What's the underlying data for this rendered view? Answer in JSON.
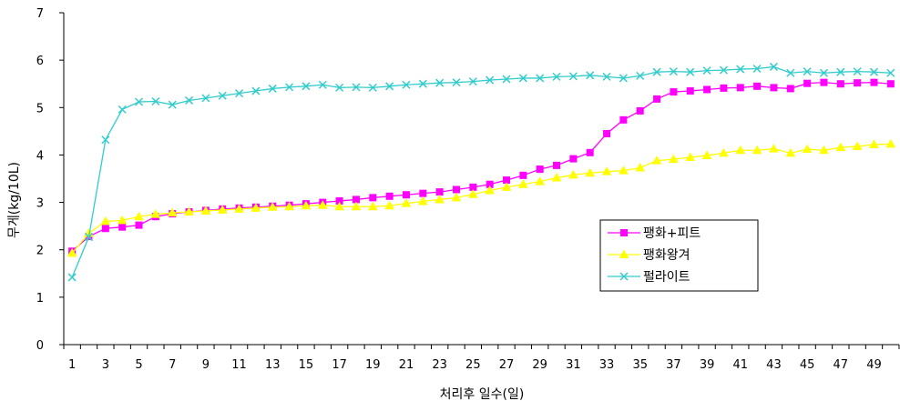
{
  "chart_data": {
    "type": "line",
    "title": "",
    "xlabel": "처리후 일수(일)",
    "ylabel": "무게(kg/10L)",
    "ylim": [
      0,
      7
    ],
    "yticks": [
      0,
      1,
      2,
      3,
      4,
      5,
      6,
      7
    ],
    "x": [
      1,
      2,
      3,
      4,
      5,
      6,
      7,
      8,
      9,
      10,
      11,
      12,
      13,
      14,
      15,
      16,
      17,
      18,
      19,
      20,
      21,
      22,
      23,
      24,
      25,
      26,
      27,
      28,
      29,
      30,
      31,
      32,
      33,
      34,
      35,
      36,
      37,
      38,
      39,
      40,
      41,
      42,
      43,
      44,
      45,
      46,
      47,
      48,
      49,
      50
    ],
    "xtick_labels": [
      "1",
      "3",
      "5",
      "7",
      "9",
      "11",
      "13",
      "15",
      "17",
      "19",
      "21",
      "23",
      "25",
      "27",
      "29",
      "31",
      "33",
      "35",
      "37",
      "39",
      "41",
      "43",
      "45",
      "47",
      "49"
    ],
    "grid": false,
    "legend_position": "center-right",
    "series": [
      {
        "name": "팽화+피트",
        "color": "#ff00ff",
        "marker": "square",
        "values": [
          1.97,
          2.28,
          2.45,
          2.48,
          2.52,
          2.7,
          2.76,
          2.8,
          2.83,
          2.86,
          2.88,
          2.9,
          2.92,
          2.94,
          2.97,
          3.0,
          3.03,
          3.06,
          3.1,
          3.13,
          3.16,
          3.19,
          3.22,
          3.27,
          3.32,
          3.38,
          3.47,
          3.57,
          3.7,
          3.78,
          3.92,
          4.05,
          4.45,
          4.74,
          4.93,
          5.18,
          5.33,
          5.35,
          5.38,
          5.41,
          5.42,
          5.45,
          5.42,
          5.4,
          5.51,
          5.53,
          5.5,
          5.52,
          5.53,
          5.5
        ]
      },
      {
        "name": "팽화왕겨",
        "color": "#ffff00",
        "marker": "triangle",
        "values": [
          1.93,
          2.35,
          2.6,
          2.62,
          2.7,
          2.75,
          2.78,
          2.8,
          2.82,
          2.84,
          2.86,
          2.88,
          2.9,
          2.91,
          2.93,
          2.94,
          2.91,
          2.91,
          2.91,
          2.93,
          2.98,
          3.02,
          3.06,
          3.1,
          3.17,
          3.25,
          3.32,
          3.38,
          3.44,
          3.52,
          3.58,
          3.62,
          3.65,
          3.67,
          3.73,
          3.88,
          3.91,
          3.95,
          3.99,
          4.04,
          4.1,
          4.1,
          4.13,
          4.04,
          4.12,
          4.1,
          4.16,
          4.18,
          4.22,
          4.23
        ]
      },
      {
        "name": "펄라이트",
        "color": "#33cccc",
        "marker": "x",
        "values": [
          1.42,
          2.27,
          4.32,
          4.96,
          5.12,
          5.13,
          5.06,
          5.15,
          5.2,
          5.25,
          5.3,
          5.35,
          5.4,
          5.43,
          5.45,
          5.48,
          5.42,
          5.43,
          5.42,
          5.45,
          5.48,
          5.5,
          5.52,
          5.53,
          5.55,
          5.58,
          5.6,
          5.62,
          5.62,
          5.65,
          5.66,
          5.68,
          5.65,
          5.62,
          5.67,
          5.75,
          5.76,
          5.75,
          5.78,
          5.79,
          5.81,
          5.82,
          5.86,
          5.73,
          5.76,
          5.73,
          5.75,
          5.76,
          5.75,
          5.73
        ]
      }
    ]
  }
}
